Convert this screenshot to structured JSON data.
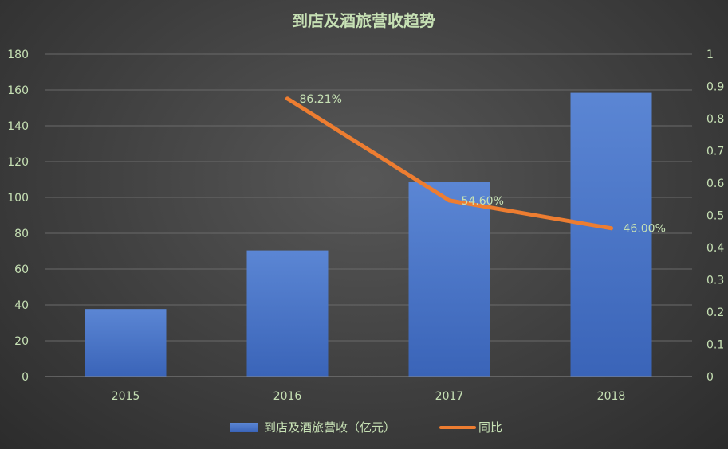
{
  "chart_data": {
    "type": "bar",
    "title": "到店及酒旅营收趋势",
    "categories": [
      "2015",
      "2016",
      "2017",
      "2018"
    ],
    "series": [
      {
        "name": "到店及酒旅营收（亿元）",
        "type": "bar",
        "axis": "left",
        "values": [
          37.7,
          70.4,
          108.6,
          158.4
        ],
        "color": "#4472c4"
      },
      {
        "name": "同比",
        "type": "line",
        "axis": "right",
        "values": [
          null,
          0.8621,
          0.546,
          0.46
        ],
        "labels": [
          "",
          "86.21%",
          "54.60%",
          "46.00%"
        ],
        "color": "#ed7d31"
      }
    ],
    "y_left": {
      "ylim": [
        0,
        180
      ],
      "ticks": [
        "0",
        "20",
        "40",
        "60",
        "80",
        "100",
        "120",
        "140",
        "160",
        "180"
      ]
    },
    "y_right": {
      "ylim": [
        0,
        1
      ],
      "ticks": [
        "0",
        "0.1",
        "0.2",
        "0.3",
        "0.4",
        "0.5",
        "0.6",
        "0.7",
        "0.8",
        "0.9",
        "1"
      ]
    },
    "grid": true,
    "legend_position": "bottom"
  }
}
